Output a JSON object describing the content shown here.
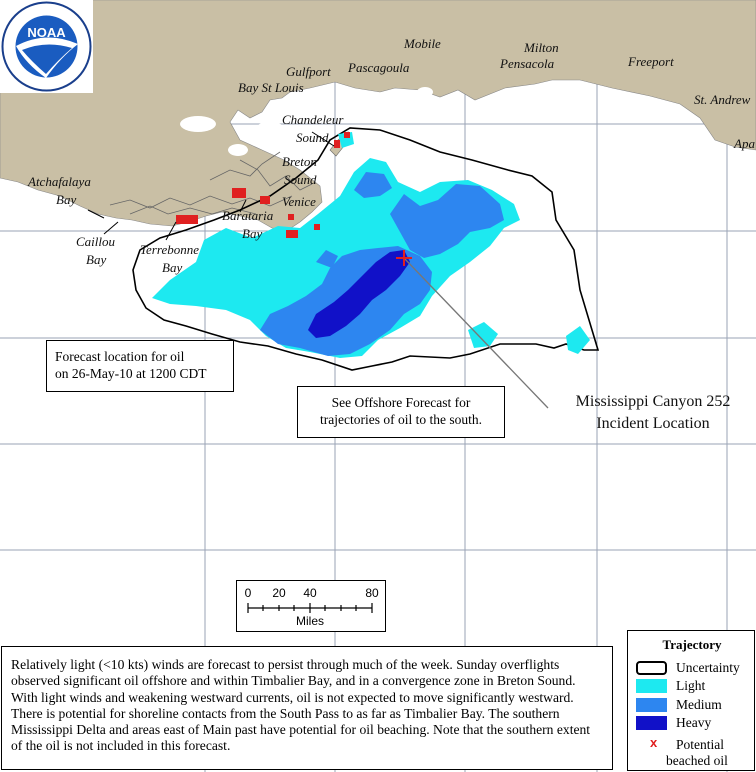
{
  "colors": {
    "land": "#c9bfa5",
    "water": "#ffffff",
    "grid": "#9aa3b5",
    "light": "#1de9f0",
    "medium": "#2d86f0",
    "heavy": "#1111c8",
    "beached": "#e02020",
    "uncertainty": "#000000"
  },
  "logo": {
    "text": "NOAA",
    "ring_top": "NATIONAL OCEANIC AND ATMOSPHERIC ADMINISTRATION",
    "ring_bottom": "U.S. DEPARTMENT OF COMMERCE"
  },
  "places": {
    "mobile": "Mobile",
    "milton": "Milton",
    "pensacola": "Pensacola",
    "freeport": "Freeport",
    "gulfport": "Gulfport",
    "pascagoula": "Pascagoula",
    "bay_st_louis": "Bay St Louis",
    "st_andrew": "St. Andrew",
    "apa": "Apa",
    "chandeleur_1": "Chandeleur",
    "chandeleur_2": "Sound",
    "breton_1": "Breton",
    "breton_2": "Sound",
    "venice": "Venice",
    "atchafalaya_1": "Atchafalaya",
    "atchafalaya_2": "Bay",
    "barataria_1": "Barataria",
    "barataria_2": "Bay",
    "caillou_1": "Caillou",
    "caillou_2": "Bay",
    "terrebonne_1": "Terrebonne",
    "terrebonne_2": "Bay"
  },
  "forecast_box": {
    "line1": "Forecast location for oil",
    "line2": "on 26-May-10 at 1200 CDT"
  },
  "offshore_box": {
    "line1": "See Offshore Forecast for",
    "line2": "trajectories of oil to the south."
  },
  "incident": {
    "line1": "Mississippi Canyon 252",
    "line2": "Incident Location"
  },
  "scale": {
    "ticks": [
      "0",
      "20",
      "40",
      "80"
    ],
    "unit": "Miles"
  },
  "notes": "Relatively light (<10 kts) winds are forecast to persist through much of the week. Sunday overflights observed significant oil offshore and within Timbalier Bay, and in a convergence zone in Breton Sound. With light winds and weakening westward currents, oil is not expected to move significantly westward. There is potential for shoreline contacts from the South Pass to as far as Timbalier Bay. The southern Mississippi Delta and areas east of Main past have potential for oil beaching. Note that the southern extent of the oil is not included in this forecast.",
  "legend": {
    "title": "Trajectory",
    "uncertainty": "Uncertainty",
    "light": "Light",
    "medium": "Medium",
    "heavy": "Heavy",
    "beached_1": "Potential",
    "beached_2": "beached oil",
    "beached_symbol": "x"
  }
}
